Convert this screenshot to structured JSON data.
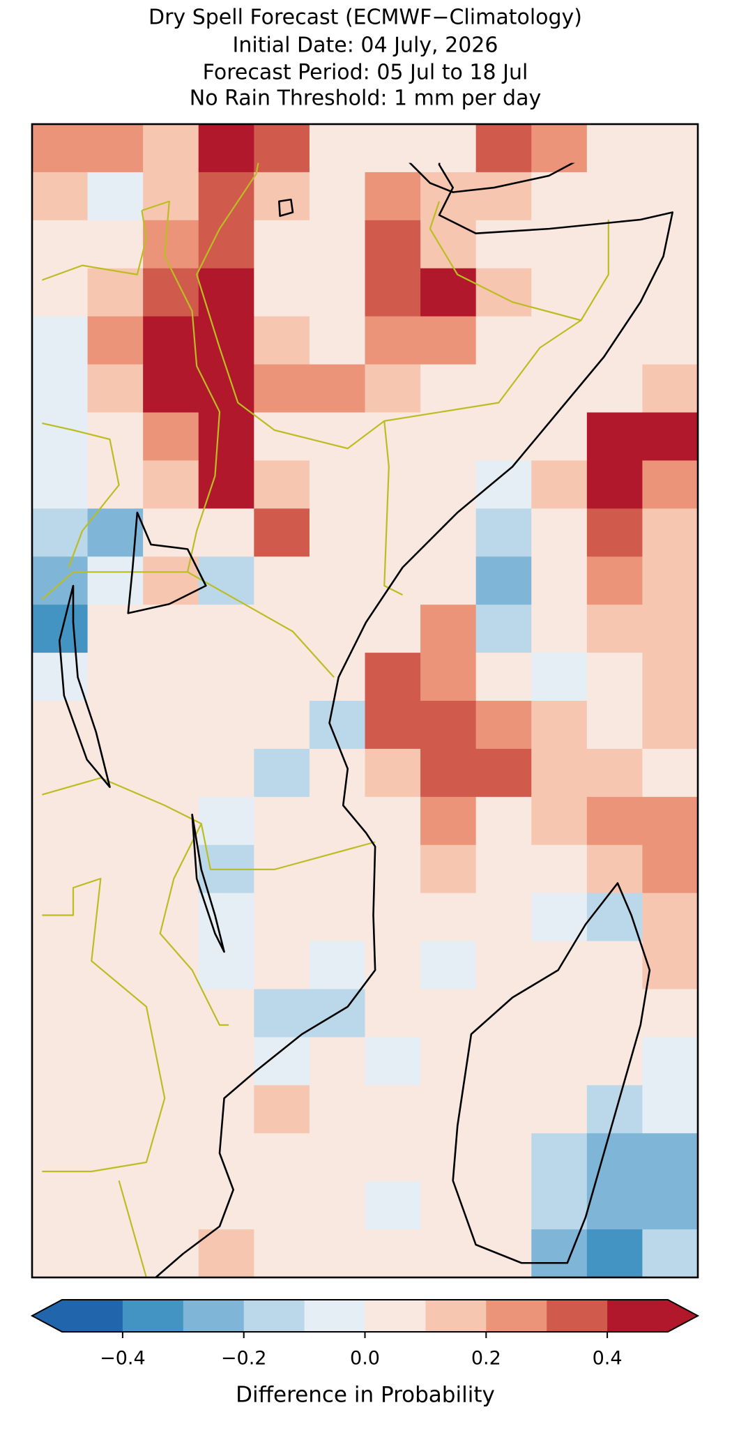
{
  "chart_data": {
    "type": "heatmap",
    "title": [
      "Dry Spell Forecast (ECMWF−Climatology)",
      "Initial Date: 04 July, 2026",
      "Forecast Period: 05 Jul to 18 Jul",
      "No Rain Threshold: 1 mm per day"
    ],
    "values": [
      [
        0.25,
        0.25,
        0.15,
        0.45,
        0.35,
        0.05,
        0.05,
        0.05,
        0.35,
        0.25,
        0.05,
        0.05
      ],
      [
        0.15,
        -0.05,
        0.15,
        0.35,
        0.15,
        0.05,
        0.25,
        0.15,
        0.15,
        0.05,
        0.05,
        0.05
      ],
      [
        0.05,
        0.05,
        0.25,
        0.35,
        0.05,
        0.05,
        0.35,
        0.15,
        0.05,
        0.05,
        0.05,
        0.05
      ],
      [
        0.05,
        0.15,
        0.35,
        0.45,
        0.05,
        0.05,
        0.35,
        0.45,
        0.15,
        0.05,
        0.05,
        0.05
      ],
      [
        -0.05,
        0.25,
        0.45,
        0.45,
        0.15,
        0.05,
        0.25,
        0.25,
        0.05,
        0.05,
        0.05,
        0.05
      ],
      [
        -0.05,
        0.15,
        0.45,
        0.45,
        0.25,
        0.25,
        0.15,
        0.05,
        0.05,
        0.05,
        0.05,
        0.15
      ],
      [
        -0.05,
        0.05,
        0.25,
        0.45,
        0.05,
        0.05,
        0.05,
        0.05,
        0.05,
        0.05,
        0.45,
        0.45
      ],
      [
        -0.05,
        0.05,
        0.15,
        0.45,
        0.15,
        0.05,
        0.05,
        0.05,
        -0.05,
        0.15,
        0.45,
        0.25
      ],
      [
        -0.15,
        -0.25,
        0.05,
        0.05,
        0.35,
        0.05,
        0.05,
        0.05,
        -0.15,
        0.05,
        0.35,
        0.15
      ],
      [
        -0.25,
        -0.05,
        0.15,
        -0.15,
        0.05,
        0.05,
        0.05,
        0.05,
        -0.25,
        0.05,
        0.25,
        0.15
      ],
      [
        -0.35,
        0.05,
        0.05,
        0.05,
        0.05,
        0.05,
        0.05,
        0.25,
        -0.15,
        0.05,
        0.15,
        0.15
      ],
      [
        -0.05,
        0.05,
        0.05,
        0.05,
        0.05,
        0.05,
        0.35,
        0.25,
        0.05,
        -0.05,
        0.05,
        0.15
      ],
      [
        0.05,
        0.05,
        0.05,
        0.05,
        0.05,
        -0.15,
        0.35,
        0.35,
        0.25,
        0.15,
        0.05,
        0.15
      ],
      [
        0.05,
        0.05,
        0.05,
        0.05,
        -0.15,
        0.05,
        0.15,
        0.35,
        0.35,
        0.15,
        0.15,
        0.05
      ],
      [
        0.05,
        0.05,
        0.05,
        -0.05,
        0.05,
        0.05,
        0.05,
        0.25,
        0.05,
        0.15,
        0.25,
        0.25
      ],
      [
        0.05,
        0.05,
        0.05,
        -0.15,
        0.05,
        0.05,
        0.05,
        0.15,
        0.05,
        0.05,
        0.15,
        0.25
      ],
      [
        0.05,
        0.05,
        0.05,
        -0.05,
        0.05,
        0.05,
        0.05,
        0.05,
        0.05,
        -0.05,
        -0.15,
        0.15
      ],
      [
        0.05,
        0.05,
        0.05,
        -0.05,
        0.05,
        -0.05,
        0.05,
        -0.05,
        0.05,
        0.05,
        0.05,
        0.15
      ],
      [
        0.05,
        0.05,
        0.05,
        0.05,
        -0.15,
        -0.15,
        0.05,
        0.05,
        0.05,
        0.05,
        0.05,
        0.05
      ],
      [
        0.05,
        0.05,
        0.05,
        0.05,
        -0.05,
        0.05,
        -0.05,
        0.05,
        0.05,
        0.05,
        0.05,
        -0.05
      ],
      [
        0.05,
        0.05,
        0.05,
        0.05,
        0.15,
        0.05,
        0.05,
        0.05,
        0.05,
        0.05,
        -0.15,
        -0.05
      ],
      [
        0.05,
        0.05,
        0.05,
        0.05,
        0.05,
        0.05,
        0.05,
        0.05,
        0.05,
        -0.15,
        -0.25,
        -0.25
      ],
      [
        0.05,
        0.05,
        0.05,
        0.05,
        0.05,
        0.05,
        -0.05,
        0.05,
        0.05,
        -0.15,
        -0.25,
        -0.25
      ],
      [
        0.05,
        0.05,
        0.05,
        0.15,
        0.05,
        0.05,
        0.05,
        0.05,
        0.05,
        -0.25,
        -0.35,
        -0.15
      ]
    ],
    "colorbar": {
      "label": "Difference in Probability",
      "boundaries": [
        -0.5,
        -0.4,
        -0.3,
        -0.2,
        -0.1,
        0,
        0.1,
        0.2,
        0.3,
        0.4,
        0.5
      ],
      "colors": [
        "#2166ac",
        "#4393c3",
        "#7fb6d8",
        "#bad8ea",
        "#e5eef4",
        "#f9e8e0",
        "#f7c6b0",
        "#eb9479",
        "#d05b4c",
        "#b2182b"
      ],
      "extend": "both",
      "ticks": [
        {
          "value": -0.4,
          "label": "−0.4"
        },
        {
          "value": -0.2,
          "label": "−0.2"
        },
        {
          "value": 0,
          "label": "0.0"
        },
        0.2,
        0.4
      ]
    }
  }
}
